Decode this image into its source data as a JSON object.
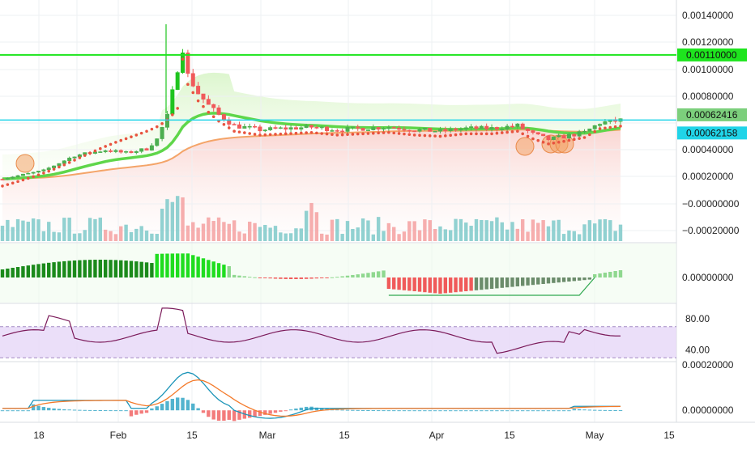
{
  "colors": {
    "up": "#4caf50",
    "down": "#f05a5a",
    "up_strong": "#1fc41f",
    "resistance_line": "#1ee51e",
    "price_line": "#20d4e8",
    "rsi_line": "#7b1a5a",
    "rsi_band": "#e6d7f7",
    "macd_line": "#1b94b8",
    "signal_line": "#f47a2a",
    "ema_fast": "#5fd64a",
    "ema_slow": "#f4a468",
    "sar": "#e8533f",
    "axis_text": "#222222",
    "grid": "#eef0f3"
  },
  "chart_data": {
    "type": "candlestick",
    "x_axis": {
      "tick_labels": [
        "18",
        "Feb",
        "15",
        "Mar",
        "15",
        "Apr",
        "15",
        "May",
        "15"
      ]
    },
    "price_panel": {
      "y_ticks": [
        "0.00140000",
        "0.00120000",
        "0.00100000",
        "0.00080000",
        "0.00040000",
        "0.00020000",
        "−0.00000000",
        "−0.00020000"
      ],
      "y_range": [
        -0.00028,
        0.00148
      ],
      "resistance_level": 0.0011,
      "resistance_label": "0.00110000",
      "last_price": 0.00062416,
      "last_price_label": "0.00062416",
      "price_line": 0.00062158,
      "price_line_label": "0.00062158",
      "close_samples": [
        [
          0,
          0.00019
        ],
        [
          8,
          0.00025
        ],
        [
          14,
          0.00036
        ],
        [
          20,
          0.0004
        ],
        [
          24,
          0.00038
        ],
        [
          28,
          0.00041
        ],
        [
          30,
          0.00048
        ],
        [
          32,
          0.00065
        ],
        [
          34,
          0.001
        ],
        [
          35,
          0.00115
        ],
        [
          36,
          0.00095
        ],
        [
          38,
          0.00082
        ],
        [
          40,
          0.00073
        ],
        [
          42,
          0.00066
        ],
        [
          45,
          0.00058
        ],
        [
          50,
          0.00055
        ],
        [
          55,
          0.00056
        ],
        [
          60,
          0.00057
        ],
        [
          65,
          0.00055
        ],
        [
          70,
          0.00056
        ],
        [
          75,
          0.00057
        ],
        [
          80,
          0.00055
        ],
        [
          85,
          0.00054
        ],
        [
          90,
          0.00056
        ],
        [
          95,
          0.00056
        ],
        [
          100,
          0.00058
        ],
        [
          103,
          0.00052
        ],
        [
          106,
          0.00048
        ],
        [
          109,
          0.0005
        ],
        [
          113,
          0.00053
        ],
        [
          116,
          0.0006
        ],
        [
          118,
          0.00061
        ],
        [
          120,
          0.00062
        ]
      ]
    },
    "rsi_panel": {
      "y_ticks": [
        "80.00",
        "40.00"
      ],
      "y_range": [
        25,
        100
      ],
      "band": [
        30,
        70
      ]
    },
    "macd_panel": {
      "y_ticks": [
        "0.00020000",
        "0.00000000"
      ],
      "y_range": [
        -6e-05,
        0.00024
      ]
    },
    "momentum_panel": {
      "y_ticks": [
        "0.00000000"
      ]
    }
  }
}
